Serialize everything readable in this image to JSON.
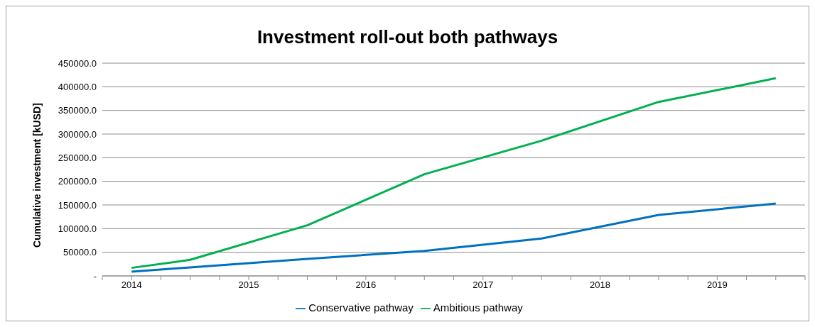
{
  "chart_data": {
    "type": "line",
    "title": "Investment roll-out both pathways",
    "ylabel": "Cumulative investment [kUSD]",
    "x": [
      2014,
      2014.5,
      2015.5,
      2016.5,
      2017.5,
      2018.5,
      2019.5
    ],
    "series": [
      {
        "name": "Conservative pathway",
        "color": "#0070c0",
        "values": [
          9000,
          18000,
          36000,
          53000,
          79000,
          129000,
          153000
        ]
      },
      {
        "name": "Ambitious pathway",
        "color": "#00b050",
        "values": [
          17000,
          34000,
          107000,
          215000,
          286000,
          368000,
          418000
        ]
      }
    ],
    "xlim": [
      2013.75,
      2019.75
    ],
    "xticks": [
      {
        "value": 2013.75,
        "label": null
      },
      2014,
      {
        "value": 2014.25,
        "label": null
      },
      {
        "value": 2014.5,
        "label": null
      },
      {
        "value": 2014.75,
        "label": null
      },
      2015,
      {
        "value": 2015.25,
        "label": null
      },
      {
        "value": 2015.5,
        "label": null
      },
      {
        "value": 2015.75,
        "label": null
      },
      2016,
      {
        "value": 2016.25,
        "label": null
      },
      {
        "value": 2016.5,
        "label": null
      },
      {
        "value": 2016.75,
        "label": null
      },
      2017,
      {
        "value": 2017.25,
        "label": null
      },
      {
        "value": 2017.5,
        "label": null
      },
      {
        "value": 2017.75,
        "label": null
      },
      2018,
      {
        "value": 2018.25,
        "label": null
      },
      {
        "value": 2018.5,
        "label": null
      },
      {
        "value": 2018.75,
        "label": null
      },
      2019,
      {
        "value": 2019.25,
        "label": null
      },
      {
        "value": 2019.5,
        "label": null
      },
      {
        "value": 2019.75,
        "label": null
      }
    ],
    "ylim": [
      0,
      450000
    ],
    "yticks": [
      {
        "value": 0,
        "label": "-"
      },
      {
        "value": 50000,
        "label": "50000.0"
      },
      {
        "value": 100000,
        "label": "100000.0"
      },
      {
        "value": 150000,
        "label": "150000.0"
      },
      {
        "value": 200000,
        "label": "200000.0"
      },
      {
        "value": 250000,
        "label": "250000.0"
      },
      {
        "value": 300000,
        "label": "300000.0"
      },
      {
        "value": 350000,
        "label": "350000.0"
      },
      {
        "value": 400000,
        "label": "400000.0"
      },
      {
        "value": 450000,
        "label": "450000.0"
      }
    ],
    "grid": "y",
    "legend": "bottom",
    "marker": "none",
    "line_style": "solid"
  }
}
